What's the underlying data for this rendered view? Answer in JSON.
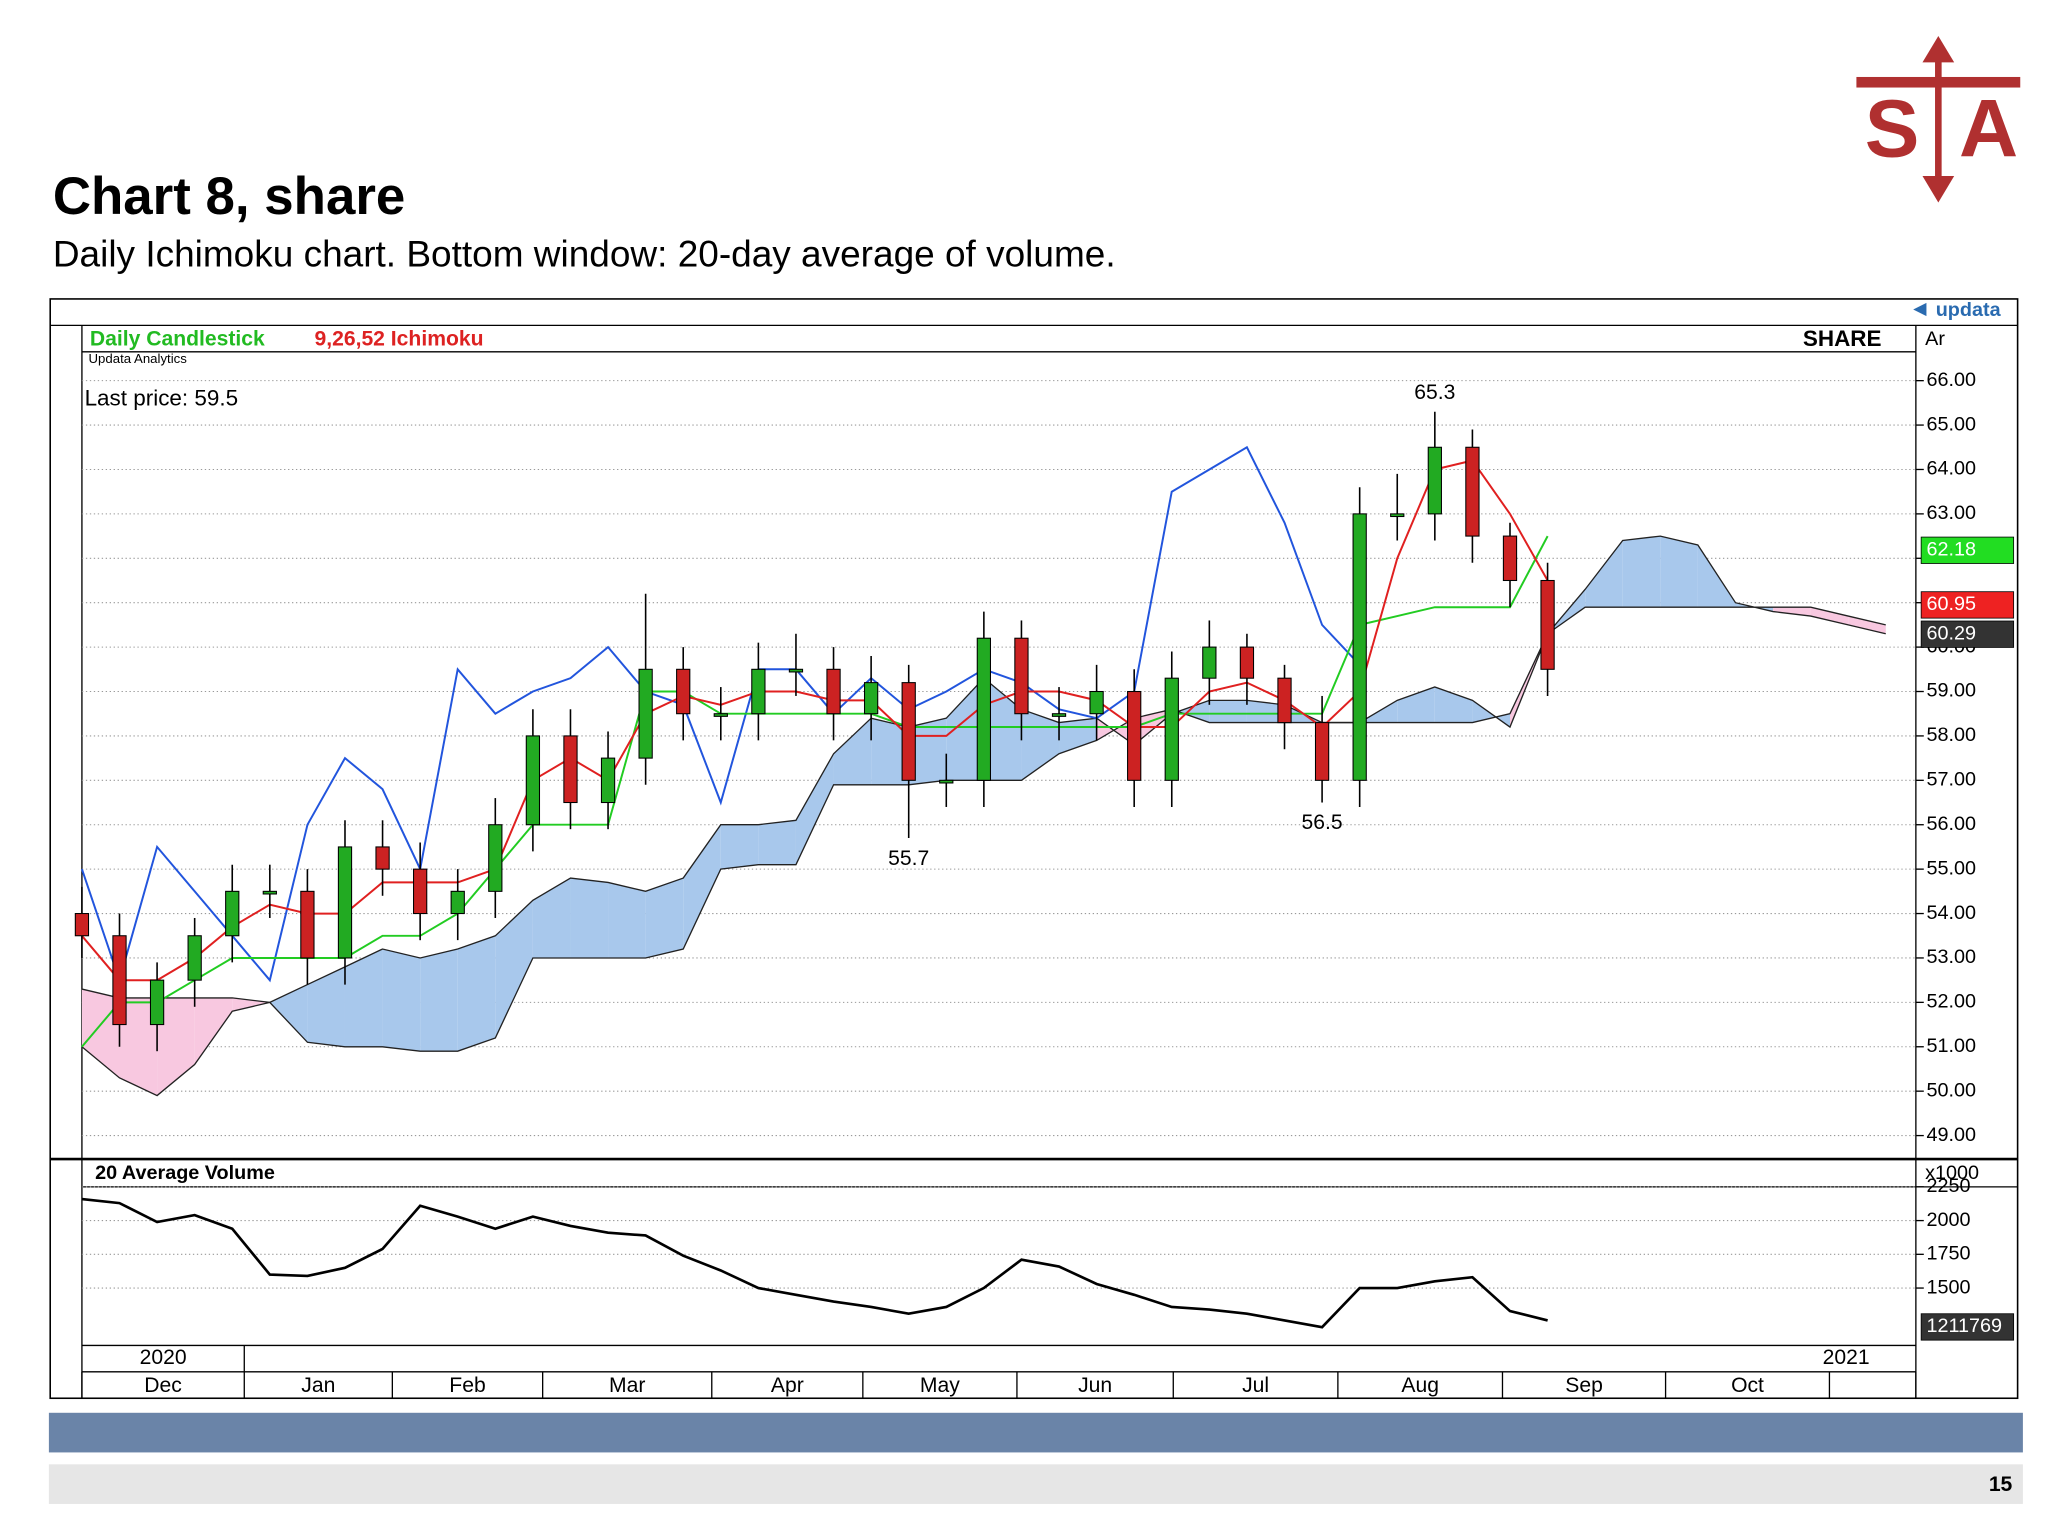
{
  "header": {
    "title": "Chart 8, share",
    "subtitle": "Daily Ichimoku chart. Bottom window: 20-day average of volume."
  },
  "logo": {
    "left": "S",
    "right": "A"
  },
  "footer": {
    "page": "15"
  },
  "panel": {
    "brand": "updata",
    "study": "Daily Candlestick",
    "indicator": "9,26,52 Ichimoku",
    "source": "Updata Analytics",
    "symbol": "SHARE",
    "axis_unit": "Ar",
    "last_price": "Last price: 59.5"
  },
  "chart_data": [
    {
      "type": "candlestick",
      "x": [
        0,
        5,
        10,
        15,
        20,
        25,
        30,
        35,
        40,
        45,
        50,
        55,
        60,
        65,
        70,
        75,
        80,
        85,
        90,
        95,
        100,
        105,
        110,
        115,
        120,
        125,
        130,
        135,
        140,
        145,
        150,
        155,
        160,
        165,
        170,
        175,
        180,
        185,
        190,
        195,
        200,
        205,
        210,
        215,
        220,
        225,
        230,
        235,
        240
      ],
      "xlim": [
        0,
        244
      ],
      "xticks": [
        0,
        21.6,
        41.3,
        61.3,
        83.8,
        103.9,
        124.4,
        145.2,
        167.1,
        189,
        210.7,
        232.5,
        244
      ],
      "months": [
        "Dec",
        "Jan",
        "Feb",
        "Mar",
        "Apr",
        "May",
        "Jun",
        "Jul",
        "Aug",
        "Sep",
        "Oct",
        null
      ],
      "years": [
        "2020",
        "2021"
      ],
      "ylim": [
        48.5,
        66.65
      ],
      "yticks": [
        {
          "value": 49,
          "label": "49.00"
        },
        {
          "value": 50,
          "label": "50.00"
        },
        {
          "value": 51,
          "label": "51.00"
        },
        {
          "value": 52,
          "label": "52.00"
        },
        {
          "value": 53,
          "label": "53.00"
        },
        {
          "value": 54,
          "label": "54.00"
        },
        {
          "value": 55,
          "label": "55.00"
        },
        {
          "value": 56,
          "label": "56.00"
        },
        {
          "value": 57,
          "label": "57.00"
        },
        {
          "value": 58,
          "label": "58.00"
        },
        {
          "value": 59,
          "label": "59.00"
        },
        {
          "value": 60,
          "label": "60.00"
        },
        {
          "value": 61,
          "label": "61.00"
        },
        {
          "value": 62,
          "label": "62.00"
        },
        {
          "value": 63,
          "label": "63.00"
        },
        {
          "value": 64,
          "label": "64.00"
        },
        {
          "value": 65,
          "label": "65.00"
        },
        {
          "value": 66,
          "label": "66.00"
        }
      ],
      "grid": true,
      "up_color": "#22aa22",
      "down_color": "#cc2222",
      "open": [
        54,
        53.5,
        51.5,
        52.5,
        53.5,
        54.5,
        54.5,
        53,
        55.5,
        55,
        54,
        54.5,
        56,
        58,
        56.5,
        57.5,
        59.5,
        58.5,
        58.5,
        59.5,
        59.5,
        58.5,
        59.2,
        57,
        57,
        60.2,
        58.5,
        58.5,
        59,
        57,
        59.3,
        60,
        59.3,
        58.3,
        57,
        63,
        63,
        64.5,
        62.5,
        61.5,
        null,
        null,
        null,
        null,
        null,
        null,
        null,
        null,
        null
      ],
      "high": [
        54.6,
        54,
        52.9,
        53.9,
        55.1,
        55.1,
        55,
        56.1,
        56.1,
        55.6,
        55,
        56.6,
        58.6,
        58.6,
        58.1,
        61.2,
        60,
        59.1,
        60.1,
        60.3,
        60,
        59.8,
        59.6,
        57.6,
        60.8,
        60.6,
        59.1,
        59.6,
        59.5,
        59.9,
        60.6,
        60.3,
        59.6,
        58.9,
        63.6,
        63.9,
        65.3,
        64.9,
        62.8,
        61.9,
        null,
        null,
        null,
        null,
        null,
        null,
        null,
        null,
        null
      ],
      "low": [
        53,
        51,
        50.9,
        51.9,
        52.9,
        53.9,
        52.4,
        52.4,
        54.4,
        53.4,
        53.4,
        53.9,
        55.4,
        55.9,
        55.9,
        56.9,
        57.9,
        57.9,
        57.9,
        58.9,
        57.9,
        57.9,
        55.7,
        56.4,
        56.4,
        57.9,
        57.9,
        57.9,
        56.4,
        56.4,
        58.7,
        58.7,
        57.7,
        56.5,
        56.4,
        62.4,
        62.4,
        61.9,
        60.9,
        58.9,
        null,
        null,
        null,
        null,
        null,
        null,
        null,
        null,
        null
      ],
      "close": [
        53.5,
        51.5,
        52.5,
        53.5,
        54.5,
        54.5,
        53,
        55.5,
        55,
        54,
        54.5,
        56,
        58,
        56.5,
        57.5,
        59.5,
        58.5,
        58.5,
        59.5,
        59.5,
        58.5,
        59.2,
        57,
        57,
        60.2,
        58.5,
        58.5,
        59,
        57,
        59.3,
        60,
        59.3,
        58.3,
        57,
        63,
        63,
        64.5,
        62.5,
        61.5,
        59.5,
        null,
        null,
        null,
        null,
        null,
        null,
        null,
        null,
        null
      ],
      "tenkan": {
        "color": "#e02020",
        "values": [
          53.5,
          52.5,
          52.5,
          53,
          53.7,
          54.2,
          54,
          54,
          54.7,
          54.7,
          54.7,
          55,
          57,
          57.5,
          57,
          58.5,
          58.9,
          58.7,
          59,
          59,
          58.8,
          58.8,
          58,
          58,
          58.7,
          59,
          59,
          58.8,
          58.2,
          58.2,
          59,
          59.2,
          58.8,
          58.2,
          59,
          62,
          64,
          64.2,
          63,
          61.5,
          null,
          null,
          null,
          null,
          null,
          null,
          null,
          null,
          null
        ]
      },
      "kijun": {
        "color": "#22cc22",
        "values": [
          51,
          52,
          52,
          52.5,
          53,
          53,
          53,
          53,
          53.5,
          53.5,
          54,
          55,
          56,
          56,
          56,
          59,
          59,
          58.5,
          58.5,
          58.5,
          58.5,
          58.5,
          58.2,
          58.2,
          58.2,
          58.2,
          58.2,
          58.2,
          58.2,
          58.5,
          58.5,
          58.5,
          58.5,
          58.5,
          60.5,
          60.7,
          60.9,
          60.9,
          60.9,
          62.5,
          null,
          null,
          null,
          null,
          null,
          null,
          null,
          null,
          null
        ]
      },
      "chikou": {
        "color": "#2255dd",
        "values": [
          55,
          52.5,
          55.5,
          54.5,
          53.5,
          52.5,
          56,
          57.5,
          56.8,
          55,
          59.5,
          58.5,
          59,
          59.3,
          60,
          59,
          58.7,
          56.5,
          59.5,
          59.5,
          58.5,
          59.3,
          58.6,
          59,
          59.5,
          59.2,
          58.6,
          58.4,
          59,
          63.5,
          64,
          64.5,
          62.8,
          60.5,
          59.6,
          null,
          null,
          null,
          null,
          null,
          null,
          null,
          null,
          null,
          null,
          null,
          null,
          null,
          null
        ]
      },
      "span_a": {
        "color": "#a8c8ec",
        "values": [
          51,
          50.3,
          49.9,
          50.6,
          51.8,
          52,
          52.4,
          52.8,
          53.2,
          53,
          53.2,
          53.5,
          54.3,
          54.8,
          54.7,
          54.5,
          54.8,
          56,
          56,
          56.1,
          57.6,
          58.4,
          58.2,
          58.4,
          59.3,
          58.6,
          58.3,
          58.4,
          57.8,
          58.5,
          58.8,
          58.8,
          58.7,
          58.3,
          58.3,
          58.8,
          59.1,
          58.8,
          58.2,
          60.3,
          61.3,
          62.4,
          62.5,
          62.3,
          61,
          60.8,
          60.7,
          60.5,
          60.3
        ]
      },
      "span_b": {
        "color": "#f8c8e0",
        "values": [
          52.3,
          52.1,
          52.1,
          52.1,
          52.1,
          52,
          51.1,
          51,
          51,
          50.9,
          50.9,
          51.2,
          53,
          53,
          53,
          53,
          53.2,
          55,
          55.1,
          55.1,
          56.9,
          56.9,
          56.9,
          57,
          57,
          57,
          57.6,
          57.9,
          58.4,
          58.6,
          58.3,
          58.3,
          58.3,
          58.3,
          58.3,
          58.3,
          58.3,
          58.3,
          58.5,
          60.3,
          60.9,
          60.9,
          60.9,
          60.9,
          60.9,
          60.9,
          60.9,
          60.7,
          60.5
        ]
      },
      "markers": [
        {
          "value": 62.18,
          "color": "#22dd22"
        },
        {
          "value": 60.95,
          "color": "#ee2222"
        },
        {
          "value": 60.29,
          "color": "#333333"
        }
      ],
      "annotations": [
        {
          "text": "65.3",
          "x": 180,
          "y": 65.3,
          "pos": "above"
        },
        {
          "text": "55.7",
          "x": 110,
          "y": 55.7,
          "pos": "below"
        },
        {
          "text": "56.5",
          "x": 165,
          "y": 56.5,
          "pos": "below"
        }
      ]
    },
    {
      "type": "line",
      "title": "20 Average Volume",
      "unit": "x1000",
      "ylim": [
        1075,
        2250
      ],
      "yticks": [
        1500,
        1750,
        2000,
        2250
      ],
      "grid": true,
      "color": "#000000",
      "values": [
        2160,
        2130,
        1990,
        2040,
        1940,
        1600,
        1590,
        1650,
        1790,
        2110,
        2030,
        1940,
        2030,
        1960,
        1910,
        1890,
        1740,
        1630,
        1500,
        1450,
        1400,
        1360,
        1310,
        1360,
        1500,
        1710,
        1660,
        1530,
        1450,
        1360,
        1340,
        1310,
        1260,
        1210,
        1500,
        1500,
        1550,
        1580,
        1330,
        1260
      ],
      "marker": {
        "value": 1211.769,
        "label": "1211769"
      }
    }
  ]
}
